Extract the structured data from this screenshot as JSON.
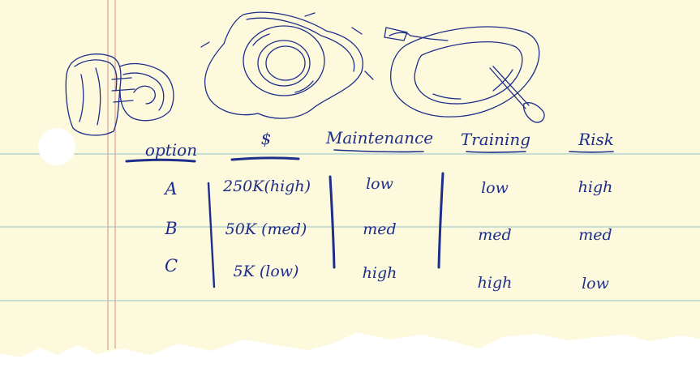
{
  "illustrations": [
    {
      "name": "life-jacket",
      "icon": "life-jacket-icon"
    },
    {
      "name": "life-ring",
      "icon": "life-ring-icon"
    },
    {
      "name": "raft",
      "icon": "raft-with-paddle-icon"
    }
  ],
  "colors": {
    "paper": "#fdf9dc",
    "ink": "#1f2e8a",
    "rule_line": "#a6d0cf",
    "margin_line": "#e0a79d",
    "punch_hole": "#ffffff"
  },
  "table": {
    "headers": {
      "option": "option",
      "cost": "$",
      "maintenance": "Maintenance",
      "training": "Training",
      "risk": "Risk"
    },
    "rows": [
      {
        "option": "A",
        "cost": "250K(high)",
        "maintenance": "low",
        "training": "low",
        "risk": "high"
      },
      {
        "option": "B",
        "cost": "50K (med)",
        "maintenance": "med",
        "training": "med",
        "risk": "med"
      },
      {
        "option": "C",
        "cost": "5K (low)",
        "maintenance": "high",
        "training": "high",
        "risk": "low"
      }
    ]
  }
}
